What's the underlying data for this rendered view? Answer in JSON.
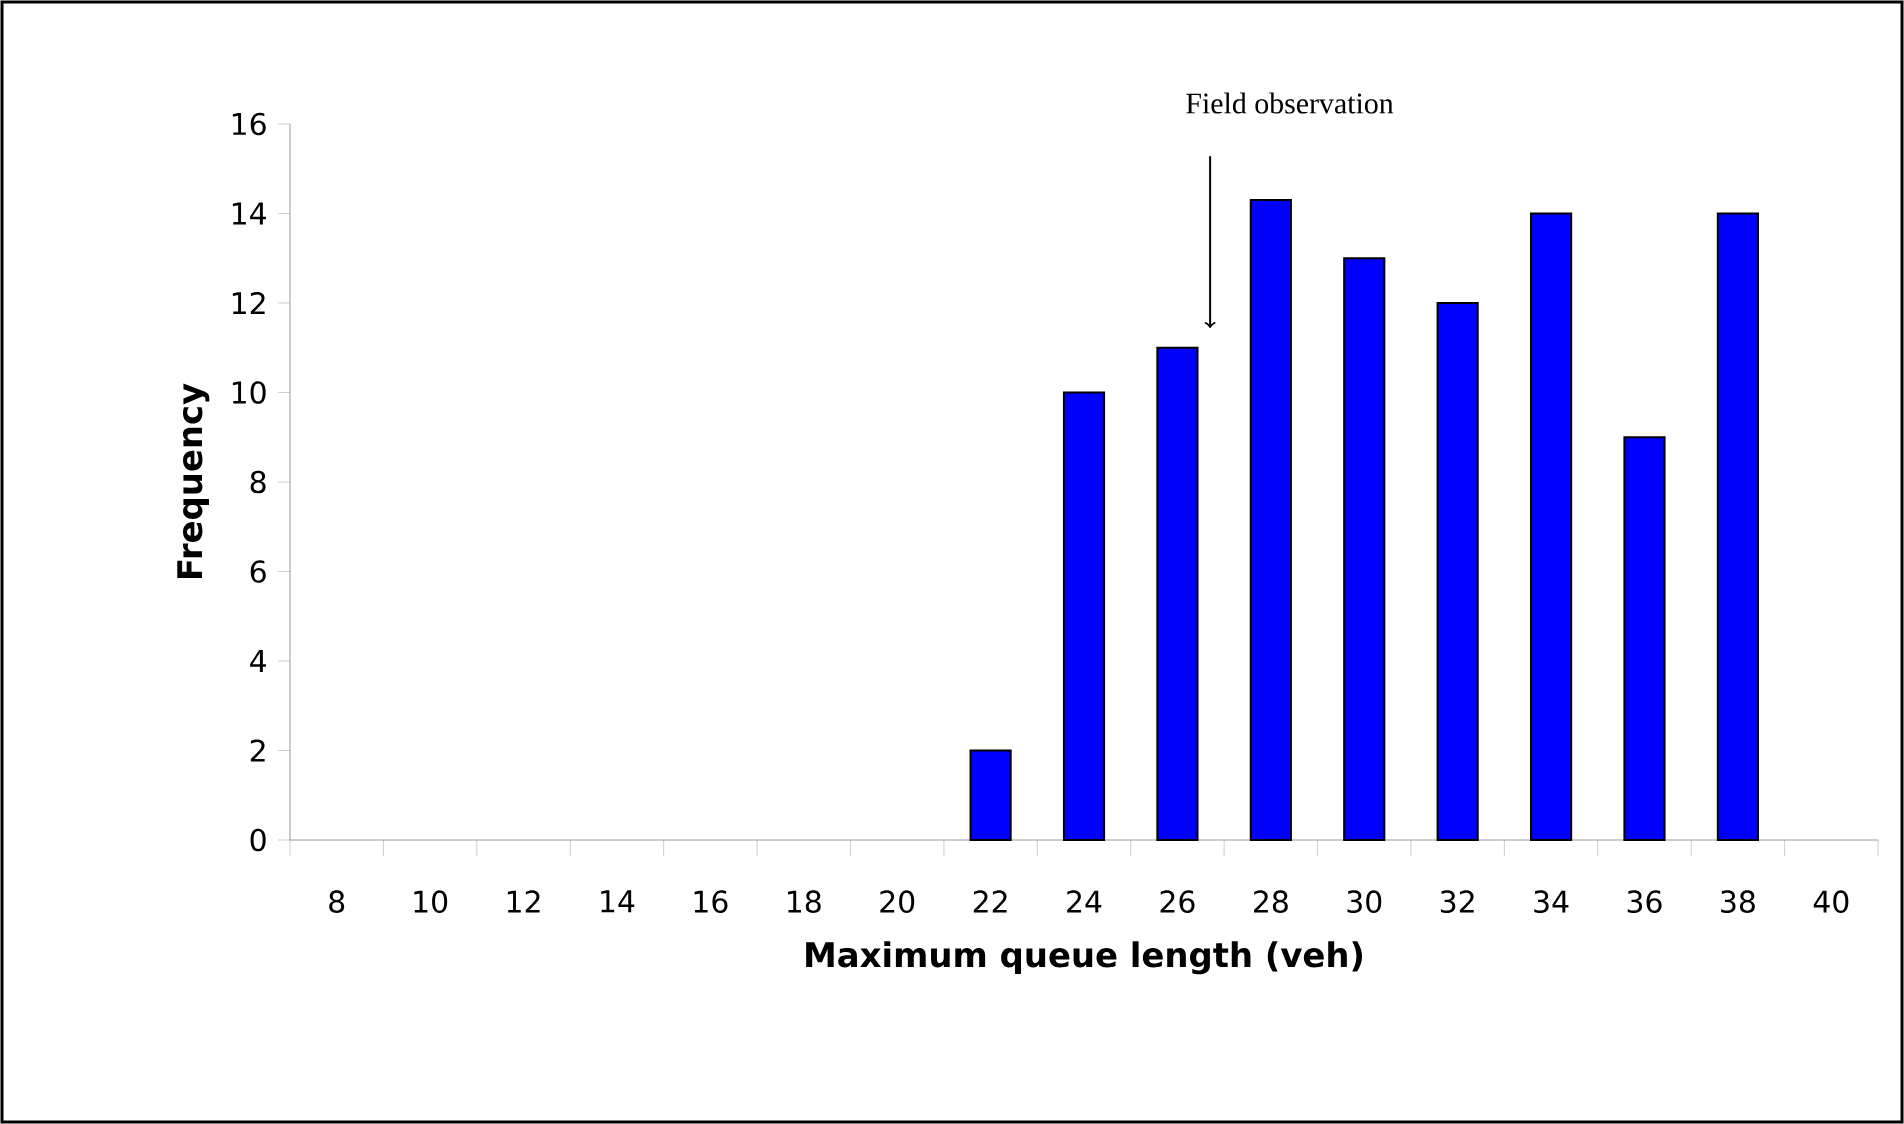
{
  "chart_data": {
    "type": "bar",
    "xlabel": "Maximum queue length (veh)",
    "ylabel": "Frequency",
    "categories": [
      "8",
      "10",
      "12",
      "14",
      "16",
      "18",
      "20",
      "22",
      "24",
      "26",
      "28",
      "30",
      "32",
      "34",
      "36",
      "38",
      "40"
    ],
    "values": [
      0,
      0,
      0,
      0,
      0,
      0,
      0,
      2,
      10,
      11,
      14.3,
      13,
      12,
      14,
      9,
      14,
      0
    ],
    "color": "#0000ff",
    "ylim": [
      0,
      16
    ],
    "yticks": [
      0,
      2,
      4,
      6,
      8,
      10,
      12,
      14,
      16
    ],
    "annotations": [
      "Field observation"
    ]
  }
}
